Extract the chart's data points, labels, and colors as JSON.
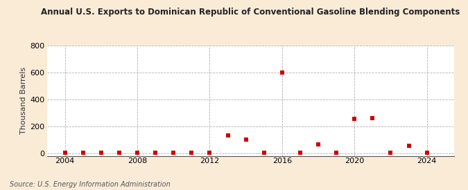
{
  "title": "Annual U.S. Exports to Dominican Republic of Conventional Gasoline Blending Components",
  "ylabel": "Thousand Barrels",
  "source": "Source: U.S. Energy Information Administration",
  "background_color": "#faebd7",
  "plot_bg_color": "#ffffff",
  "marker_color": "#cc0000",
  "marker_size": 14,
  "xlim": [
    2003.0,
    2025.5
  ],
  "ylim": [
    -20,
    800
  ],
  "yticks": [
    0,
    200,
    400,
    600,
    800
  ],
  "xticks": [
    2004,
    2008,
    2012,
    2016,
    2020,
    2024
  ],
  "data": {
    "years": [
      2004,
      2005,
      2006,
      2007,
      2008,
      2009,
      2010,
      2011,
      2012,
      2013,
      2014,
      2015,
      2016,
      2017,
      2018,
      2019,
      2020,
      2021,
      2022,
      2023,
      2024
    ],
    "values": [
      2,
      2,
      1,
      2,
      5,
      2,
      2,
      2,
      2,
      130,
      100,
      2,
      600,
      2,
      65,
      2,
      255,
      260,
      2,
      55,
      5
    ]
  }
}
